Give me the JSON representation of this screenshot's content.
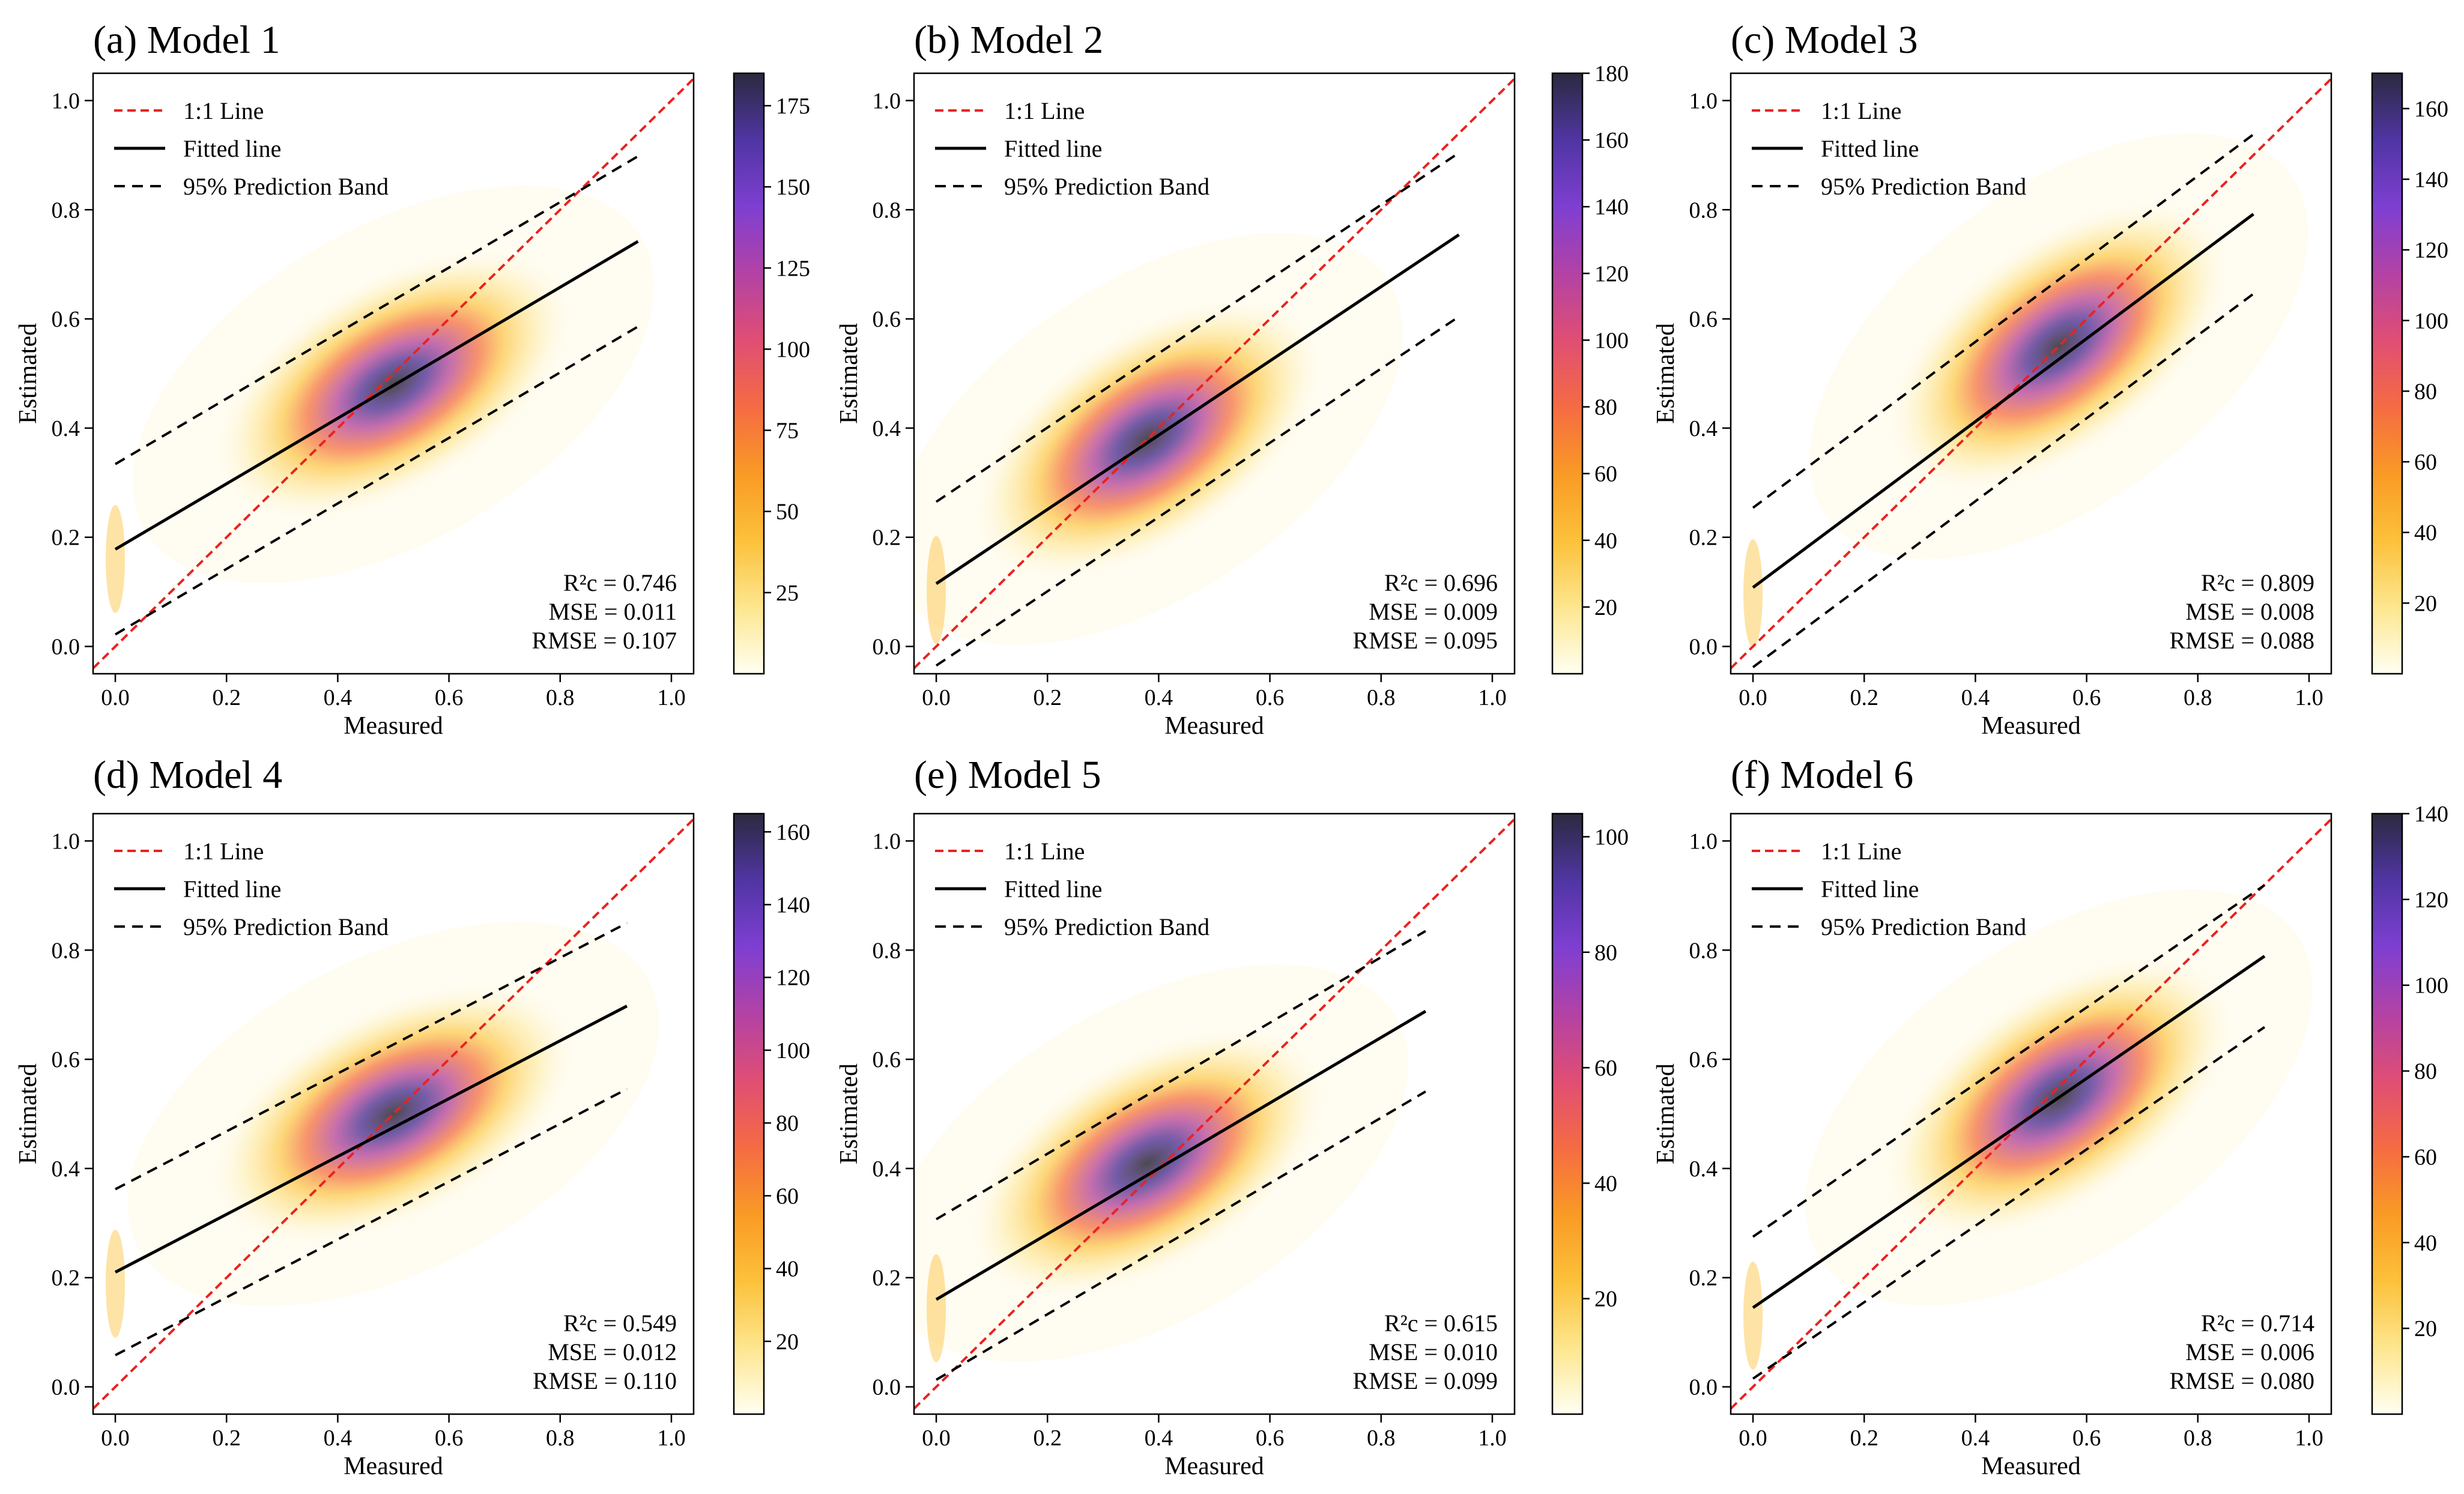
{
  "figure": {
    "legend_labels": [
      "1:1 Line",
      "Fitted line",
      "95% Prediction Band"
    ],
    "x_label": "Measured",
    "y_label": "Estimated",
    "axis_ticks": [
      "0.0",
      "0.2",
      "0.4",
      "0.6",
      "0.8",
      "1.0"
    ],
    "colors": {
      "one_to_one": "#e8231f",
      "fitted": "#000000",
      "band": "#000000",
      "colormap": [
        "#fffff2",
        "#fde68e",
        "#fcc13a",
        "#f99a25",
        "#f56b43",
        "#e04e74",
        "#b342a5",
        "#7e3fd2",
        "#5035a3",
        "#2b2a3f"
      ]
    }
  },
  "chart_data": [
    {
      "type": "scatter",
      "title": "(a) Model 1",
      "xlabel": "Measured",
      "ylabel": "Estimated",
      "xlim": [
        -0.04,
        1.04
      ],
      "ylim": [
        -0.05,
        1.05
      ],
      "density_center": [
        0.5,
        0.48
      ],
      "fit": {
        "slope": 0.6,
        "intercept": 0.178,
        "x_range": [
          0.0,
          0.94
        ]
      },
      "band_offset": 0.156,
      "colorbar": {
        "max": 185,
        "ticks": [
          25,
          50,
          75,
          100,
          125,
          150,
          175
        ]
      },
      "stats": {
        "r2c": "R²c = 0.746",
        "mse": "MSE = 0.011",
        "rmse": "RMSE = 0.107"
      }
    },
    {
      "type": "scatter",
      "title": "(b) Model 2",
      "xlabel": "Measured",
      "ylabel": "Estimated",
      "xlim": [
        -0.04,
        1.04
      ],
      "ylim": [
        -0.05,
        1.05
      ],
      "density_center": [
        0.38,
        0.38
      ],
      "fit": {
        "slope": 0.68,
        "intercept": 0.115,
        "x_range": [
          0.0,
          0.94
        ]
      },
      "band_offset": 0.15,
      "colorbar": {
        "max": 180,
        "ticks": [
          20,
          40,
          60,
          80,
          100,
          120,
          140,
          160,
          180
        ]
      },
      "stats": {
        "r2c": "R²c = 0.696",
        "mse": "MSE = 0.009",
        "rmse": "RMSE = 0.095"
      }
    },
    {
      "type": "scatter",
      "title": "(c) Model 3",
      "xlabel": "Measured",
      "ylabel": "Estimated",
      "xlim": [
        -0.04,
        1.04
      ],
      "ylim": [
        -0.05,
        1.05
      ],
      "density_center": [
        0.55,
        0.55
      ],
      "fit": {
        "slope": 0.76,
        "intercept": 0.108,
        "x_range": [
          0.0,
          0.9
        ]
      },
      "band_offset": 0.146,
      "colorbar": {
        "max": 170,
        "ticks": [
          20,
          40,
          60,
          80,
          100,
          120,
          140,
          160
        ]
      },
      "stats": {
        "r2c": "R²c = 0.809",
        "mse": "MSE = 0.008",
        "rmse": "RMSE = 0.088"
      }
    },
    {
      "type": "scatter",
      "title": "(d) Model 4",
      "xlabel": "Measured",
      "ylabel": "Estimated",
      "xlim": [
        -0.04,
        1.04
      ],
      "ylim": [
        -0.05,
        1.05
      ],
      "density_center": [
        0.5,
        0.5
      ],
      "fit": {
        "slope": 0.53,
        "intercept": 0.21,
        "x_range": [
          0.0,
          0.92
        ]
      },
      "band_offset": 0.152,
      "colorbar": {
        "max": 165,
        "ticks": [
          20,
          40,
          60,
          80,
          100,
          120,
          140,
          160
        ]
      },
      "stats": {
        "r2c": "R²c = 0.549",
        "mse": "MSE = 0.012",
        "rmse": "RMSE = 0.110"
      }
    },
    {
      "type": "scatter",
      "title": "(e) Model 5",
      "xlabel": "Measured",
      "ylabel": "Estimated",
      "xlim": [
        -0.04,
        1.04
      ],
      "ylim": [
        -0.05,
        1.05
      ],
      "density_center": [
        0.38,
        0.41
      ],
      "fit": {
        "slope": 0.6,
        "intercept": 0.16,
        "x_range": [
          0.0,
          0.88
        ]
      },
      "band_offset": 0.147,
      "colorbar": {
        "max": 104,
        "ticks": [
          20,
          40,
          60,
          80,
          100
        ]
      },
      "stats": {
        "r2c": "R²c = 0.615",
        "mse": "MSE = 0.010",
        "rmse": "RMSE = 0.099"
      }
    },
    {
      "type": "scatter",
      "title": "(f) Model 6",
      "xlabel": "Measured",
      "ylabel": "Estimated",
      "xlim": [
        -0.04,
        1.04
      ],
      "ylim": [
        -0.05,
        1.05
      ],
      "density_center": [
        0.55,
        0.53
      ],
      "fit": {
        "slope": 0.7,
        "intercept": 0.145,
        "x_range": [
          0.0,
          0.92
        ]
      },
      "band_offset": 0.13,
      "colorbar": {
        "max": 140,
        "ticks": [
          20,
          40,
          60,
          80,
          100,
          120,
          140
        ]
      },
      "stats": {
        "r2c": "R²c = 0.714",
        "mse": "MSE = 0.006",
        "rmse": "RMSE = 0.080"
      }
    }
  ]
}
